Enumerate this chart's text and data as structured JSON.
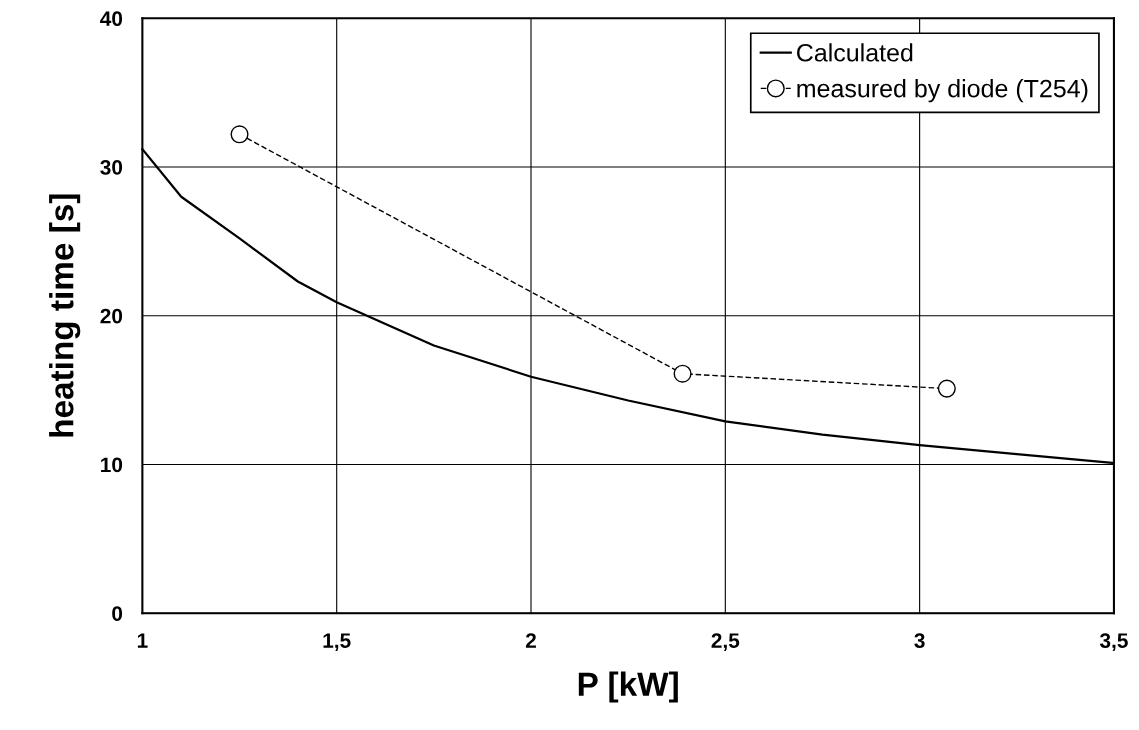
{
  "chart_data": {
    "type": "line",
    "xlabel": "P [kW]",
    "ylabel": "heating time [s]",
    "xlim": [
      1,
      3.5
    ],
    "ylim": [
      0,
      40
    ],
    "xticks": [
      1,
      {
        "value": 1.5,
        "label": "1,5"
      },
      2,
      {
        "value": 2.5,
        "label": "2,5"
      },
      3,
      {
        "value": 3.5,
        "label": "3,5"
      }
    ],
    "yticks": [
      0,
      10,
      20,
      30,
      40
    ],
    "grid": true,
    "legend": "top right",
    "series": [
      {
        "name": "Calculated",
        "color": "#000000",
        "marker": "none",
        "line_style": "solid",
        "x": [
          1,
          1.1,
          1.25,
          1.4,
          1.5,
          1.75,
          2,
          2.25,
          2.5,
          2.75,
          3,
          3.25,
          3.5
        ],
        "values": [
          31.2,
          28.0,
          25.2,
          22.3,
          20.9,
          18.0,
          15.9,
          14.3,
          12.9,
          12.0,
          11.3,
          10.7,
          10.1
        ]
      },
      {
        "name": "measured by diode (T254)",
        "color": "#000000",
        "marker": "circle",
        "line_style": "dashed",
        "x": [
          1.25,
          2.39,
          3.07
        ],
        "values": [
          32.2,
          16.1,
          15.1
        ]
      }
    ]
  }
}
